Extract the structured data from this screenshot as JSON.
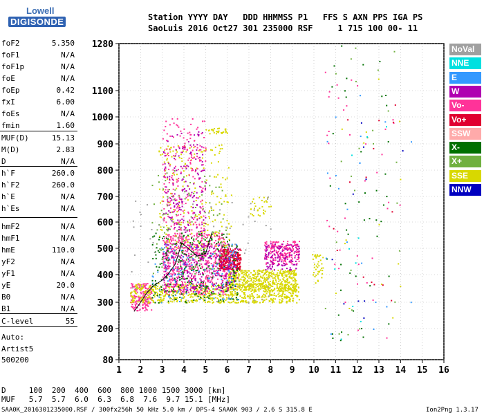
{
  "logo": {
    "line1": "Lowell",
    "line2": "DIGISONDE"
  },
  "header": {
    "labels": "Station YYYY DAY   DDD HHMMSS P1   FFS S AXN PPS IGA PS",
    "values": "SaoLuis 2016 Oct27 301 235000 RSF     1 715 100 00- 11"
  },
  "params": [
    {
      "name": "foF2",
      "value": "5.350"
    },
    {
      "name": "foF1",
      "value": "N/A"
    },
    {
      "name": "foF1p",
      "value": "N/A"
    },
    {
      "name": "foE",
      "value": "N/A"
    },
    {
      "name": "foEp",
      "value": "0.42"
    },
    {
      "name": "fxI",
      "value": "6.00"
    },
    {
      "name": "foEs",
      "value": "N/A"
    },
    {
      "name": "fmin",
      "value": "1.60"
    },
    {
      "name": "MUF(D)",
      "value": "15.13"
    },
    {
      "name": "M(D)",
      "value": "2.83"
    },
    {
      "name": "D",
      "value": "N/A"
    },
    {
      "name": "h`F",
      "value": "260.0"
    },
    {
      "name": "h`F2",
      "value": "260.0"
    },
    {
      "name": "h`E",
      "value": "N/A"
    },
    {
      "name": "h`Es",
      "value": "N/A"
    },
    {
      "name": "hmF2",
      "value": "N/A"
    },
    {
      "name": "hmF1",
      "value": "N/A"
    },
    {
      "name": "hmE",
      "value": "110.0"
    },
    {
      "name": "yF2",
      "value": "N/A"
    },
    {
      "name": "yF1",
      "value": "N/A"
    },
    {
      "name": "yE",
      "value": "20.0"
    },
    {
      "name": "B0",
      "value": "N/A"
    },
    {
      "name": "B1",
      "value": "N/A"
    },
    {
      "name": "C-level",
      "value": "55"
    }
  ],
  "auto": {
    "line1": "Auto:",
    "line2": "Artist5",
    "line3": "500200"
  },
  "legend": [
    {
      "label": "NoVal",
      "color": "#a0a0a0"
    },
    {
      "label": "NNE",
      "color": "#00e0e0"
    },
    {
      "label": "E",
      "color": "#3399ff"
    },
    {
      "label": "W",
      "color": "#b000b0"
    },
    {
      "label": "Vo-",
      "color": "#ff3399"
    },
    {
      "label": "Vo+",
      "color": "#e00030"
    },
    {
      "label": "SSW",
      "color": "#ffaaaa"
    },
    {
      "label": "X-",
      "color": "#007000"
    },
    {
      "label": "X+",
      "color": "#70b040"
    },
    {
      "label": "SSE",
      "color": "#d8d800"
    },
    {
      "label": "NNW",
      "color": "#0000c0"
    }
  ],
  "bottom": {
    "d_row": "D     100  200  400  600  800 1000 1500 3000 [km]",
    "muf_row": "MUF   5.7  5.7  6.0  6.3  6.8  7.6  9.7 15.1 [MHz]"
  },
  "footer": "SAA0K_2016301235000.RSF / 300fx256h 50 kHz 5.0 km / DPS-4 SAA0K 903 / 2.6 S 315.8 E",
  "version": "Ion2Png 1.3.17",
  "chart_data": {
    "type": "scatter",
    "x_ticks": [
      "1",
      "2",
      "3",
      "4",
      "5",
      "6",
      "7",
      "8",
      "9",
      "10",
      "11",
      "12",
      "13",
      "14",
      "15",
      "16"
    ],
    "y_ticks": [
      "80",
      "200",
      "300",
      "400",
      "500",
      "600",
      "700",
      "800",
      "900",
      "1000",
      "1100",
      "1280"
    ],
    "xlim": [
      1,
      16
    ],
    "ylim": [
      80,
      1280
    ],
    "y_scale": "nonlinear",
    "grid": "dotted",
    "trace": {
      "x": [
        1.7,
        2.0,
        2.3,
        2.6,
        3.0,
        3.3,
        3.6,
        3.9,
        4.2,
        4.6,
        5.0,
        5.3
      ],
      "y": [
        265,
        300,
        335,
        360,
        380,
        405,
        440,
        520,
        500,
        470,
        480,
        560
      ]
    },
    "clusters": [
      {
        "cls": 4,
        "x": [
          1.5,
          2.5
        ],
        "y": [
          270,
          370
        ],
        "n": 180
      },
      {
        "cls": 9,
        "x": [
          1.5,
          9.3
        ],
        "y": [
          300,
          370
        ],
        "n": 700
      },
      {
        "cls": 9,
        "x": [
          6.0,
          9.2
        ],
        "y": [
          340,
          420
        ],
        "n": 500
      },
      {
        "cls": 4,
        "x": [
          3.0,
          6.0
        ],
        "y": [
          330,
          560
        ],
        "n": 650
      },
      {
        "cls": 5,
        "x": [
          5.6,
          6.6
        ],
        "y": [
          420,
          500
        ],
        "n": 250
      },
      {
        "cls": 3,
        "x": [
          3.0,
          6.5
        ],
        "y": [
          340,
          520
        ],
        "n": 300
      },
      {
        "cls": 7,
        "x": [
          2.5,
          6.5
        ],
        "y": [
          300,
          560
        ],
        "n": 250
      },
      {
        "cls": 2,
        "x": [
          2.5,
          6.5
        ],
        "y": [
          300,
          520
        ],
        "n": 120
      },
      {
        "cls": 9,
        "x": [
          2.8,
          6.2
        ],
        "y": [
          500,
          900
        ],
        "n": 220
      },
      {
        "cls": 4,
        "x": [
          3.0,
          5.0
        ],
        "y": [
          560,
          1000
        ],
        "n": 220
      },
      {
        "cls": 3,
        "x": [
          3.0,
          5.0
        ],
        "y": [
          560,
          950
        ],
        "n": 160
      },
      {
        "cls": 8,
        "x": [
          2.5,
          6.0
        ],
        "y": [
          400,
          800
        ],
        "n": 120
      },
      {
        "cls": 4,
        "x": [
          7.7,
          9.3
        ],
        "y": [
          440,
          530
        ],
        "n": 200
      },
      {
        "cls": 3,
        "x": [
          7.7,
          9.3
        ],
        "y": [
          420,
          520
        ],
        "n": 120
      },
      {
        "cls": 9,
        "x": [
          9.9,
          10.4
        ],
        "y": [
          360,
          480
        ],
        "n": 40
      },
      {
        "cls": 9,
        "x": [
          5.0,
          6.0
        ],
        "y": [
          940,
          960
        ],
        "n": 30
      },
      {
        "cls": 9,
        "x": [
          7.0,
          8.0
        ],
        "y": [
          620,
          700
        ],
        "n": 30
      },
      {
        "cls": 0,
        "x": [
          1.5,
          8.0
        ],
        "y": [
          300,
          700
        ],
        "n": 80
      },
      {
        "cls": 7,
        "x": [
          10.5,
          13.5
        ],
        "y": [
          150,
          1280
        ],
        "n": 45
      },
      {
        "cls": 4,
        "x": [
          10.5,
          14.0
        ],
        "y": [
          150,
          1200
        ],
        "n": 40
      },
      {
        "cls": 2,
        "x": [
          10.5,
          14.5
        ],
        "y": [
          150,
          1200
        ],
        "n": 20
      },
      {
        "cls": 8,
        "x": [
          10.5,
          14.0
        ],
        "y": [
          150,
          1280
        ],
        "n": 25
      },
      {
        "cls": 9,
        "x": [
          10.5,
          14.0
        ],
        "y": [
          150,
          1200
        ],
        "n": 15
      },
      {
        "cls": 10,
        "x": [
          10.5,
          14.5
        ],
        "y": [
          150,
          1000
        ],
        "n": 10
      },
      {
        "cls": 5,
        "x": [
          10.5,
          14.0
        ],
        "y": [
          150,
          1100
        ],
        "n": 15
      },
      {
        "cls": 1,
        "x": [
          10.5,
          14.0
        ],
        "y": [
          150,
          1100
        ],
        "n": 10
      }
    ]
  }
}
